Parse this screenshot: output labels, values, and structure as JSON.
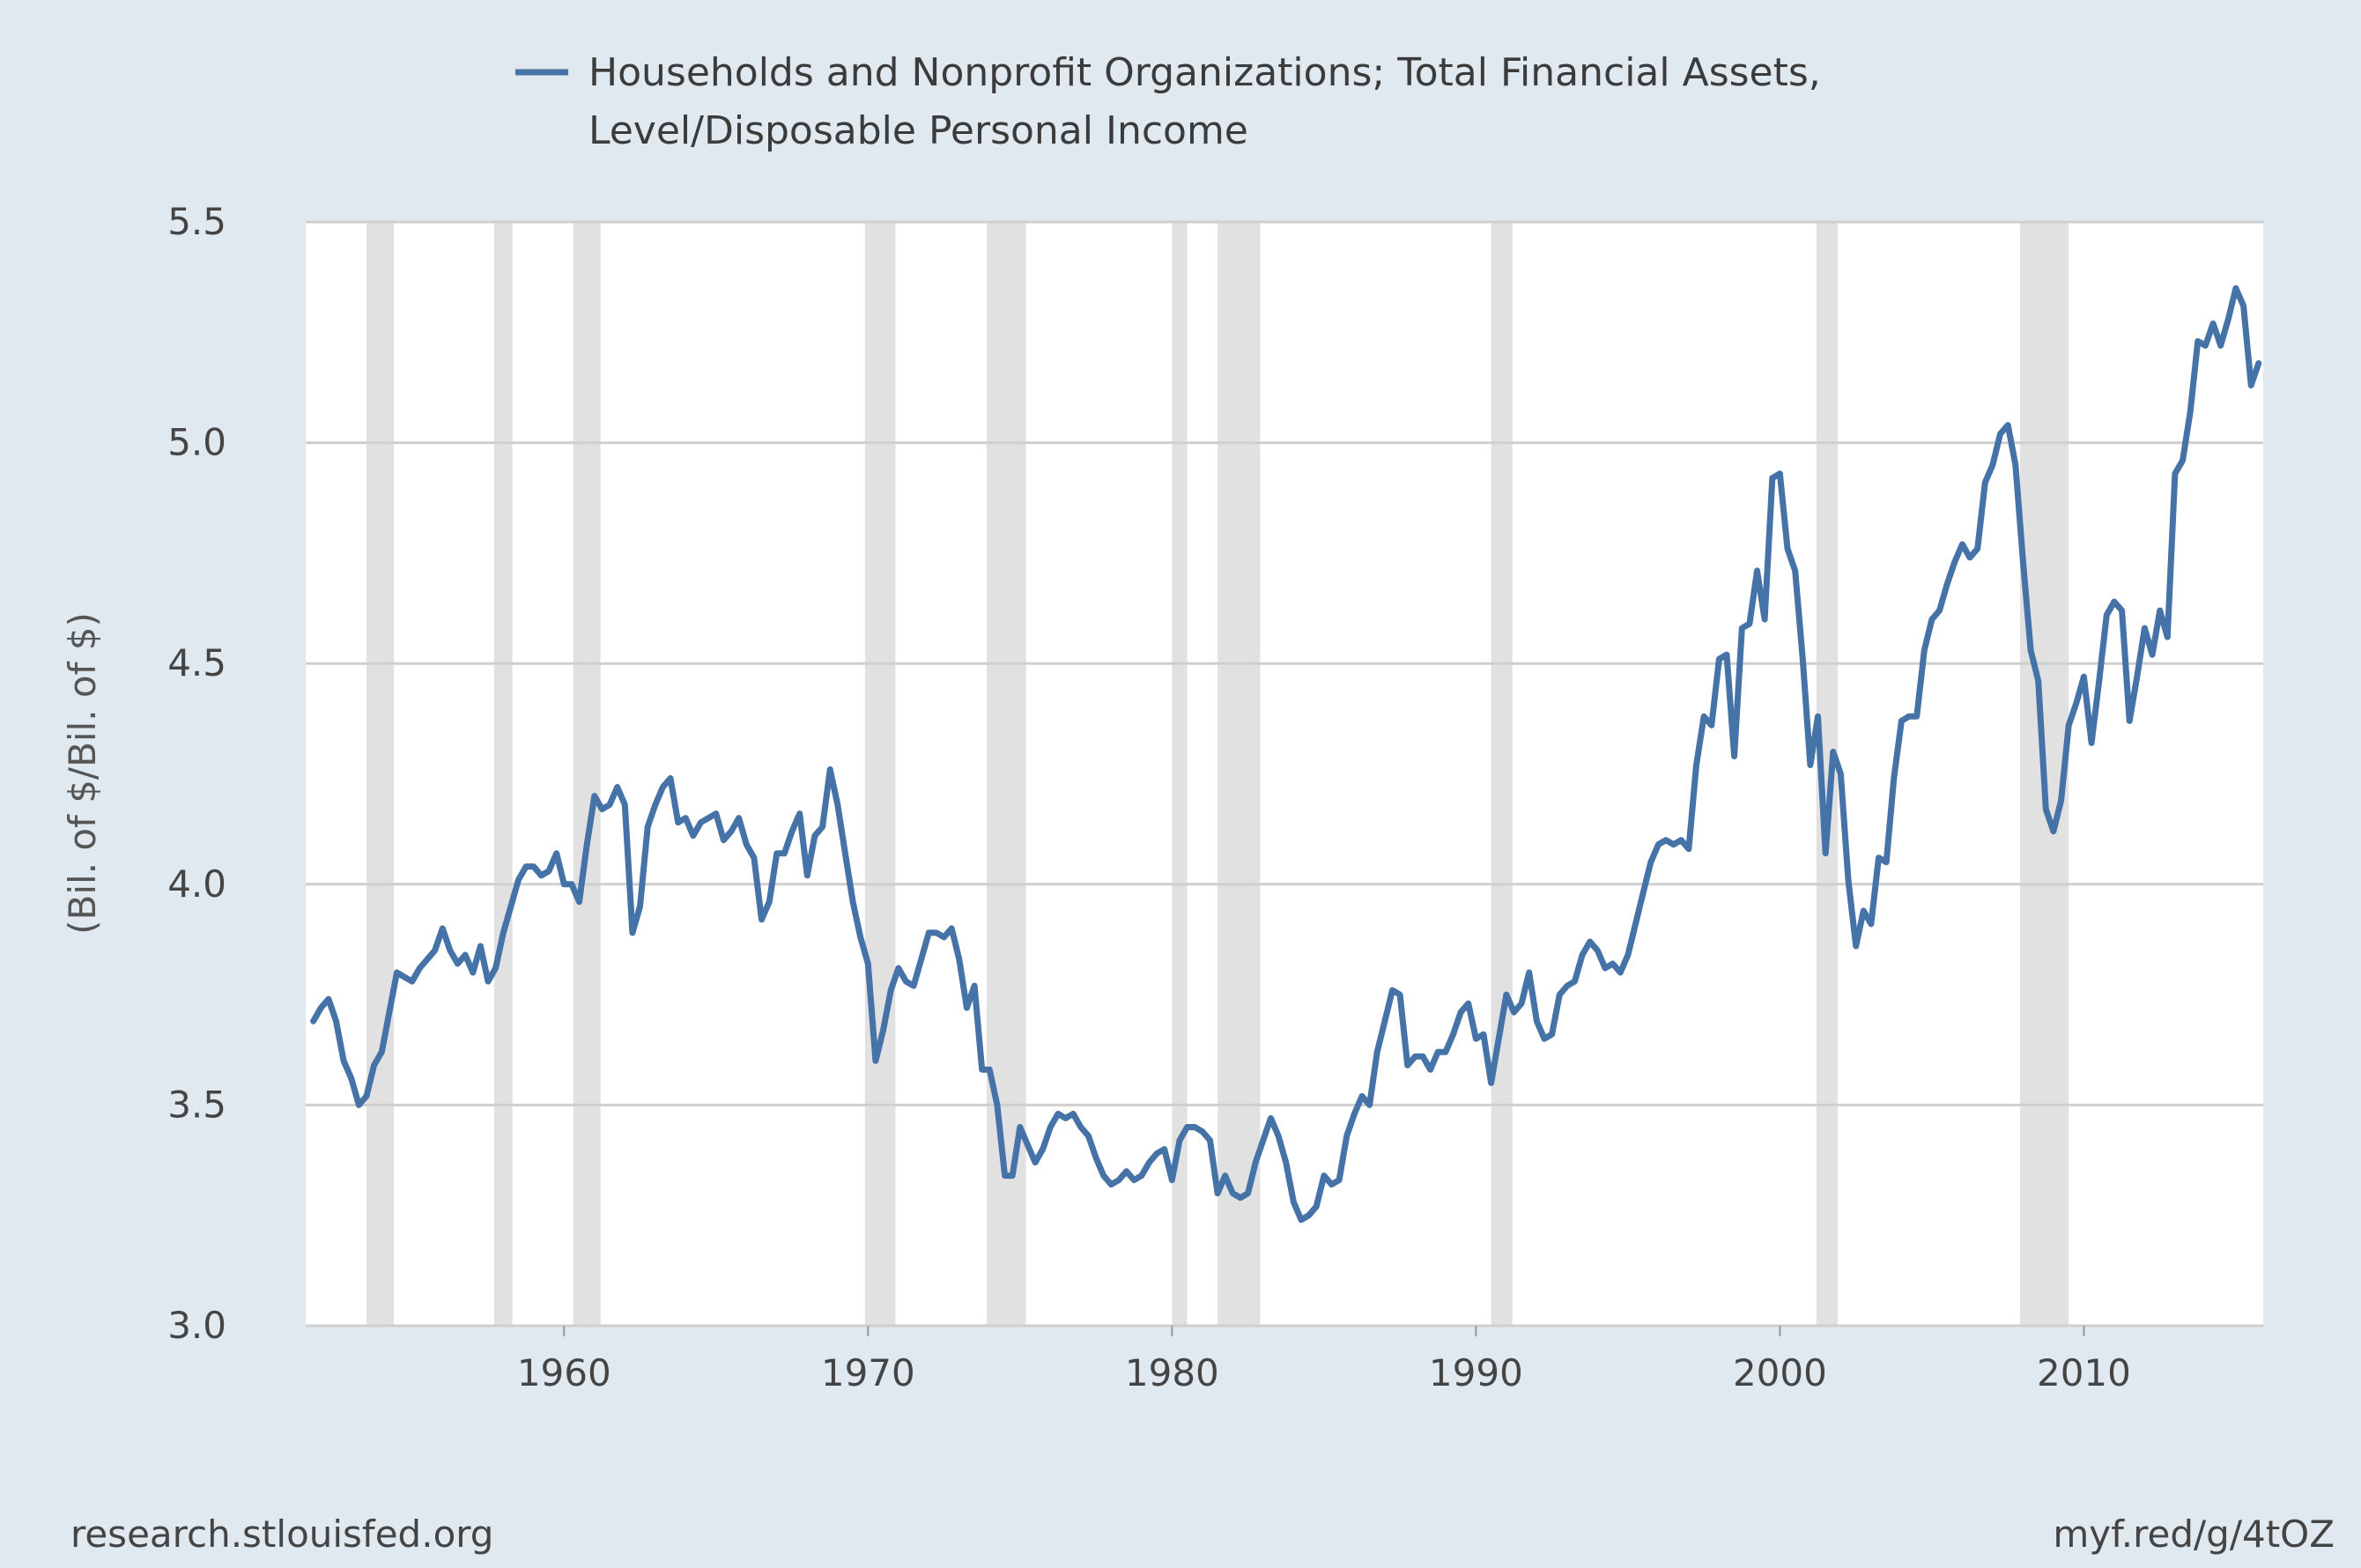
{
  "legend": {
    "line1": "Households and Nonprofit Organizations; Total Financial Assets,",
    "line2": "Level/Disposable Personal Income",
    "color": "#4572a7"
  },
  "footer": {
    "left": "research.stlouisfed.org",
    "right": "myf.red/g/4tOZ"
  },
  "chart_data": {
    "type": "line",
    "ylabel": "(Bil. of $/Bil. of $)",
    "xlim": [
      1951.5,
      2015.9
    ],
    "ylim": [
      3.0,
      5.5
    ],
    "x_ticks": [
      1960,
      1970,
      1980,
      1990,
      2000,
      2010
    ],
    "y_ticks": [
      3.0,
      3.5,
      4.0,
      4.5,
      5.0,
      5.5
    ],
    "y_tick_labels": [
      "3.0",
      "3.5",
      "4.0",
      "4.5",
      "5.0",
      "5.5"
    ],
    "grid": "horizontal",
    "legend_position": "top",
    "recession_color": "#e1e1e1",
    "recessions": [
      [
        1953.5,
        1954.4
      ],
      [
        1957.7,
        1958.3
      ],
      [
        1960.3,
        1961.2
      ],
      [
        1969.9,
        1970.9
      ],
      [
        1973.9,
        1975.2
      ],
      [
        1980.0,
        1980.5
      ],
      [
        1981.5,
        1982.9
      ],
      [
        1990.5,
        1991.2
      ],
      [
        2001.2,
        2001.9
      ],
      [
        2007.9,
        2009.5
      ]
    ],
    "series": [
      {
        "color": "#4572a7",
        "points": [
          [
            1951.75,
            3.69
          ],
          [
            1952.0,
            3.72
          ],
          [
            1952.25,
            3.74
          ],
          [
            1952.5,
            3.69
          ],
          [
            1952.75,
            3.6
          ],
          [
            1953.0,
            3.56
          ],
          [
            1953.25,
            3.5
          ],
          [
            1953.5,
            3.52
          ],
          [
            1953.75,
            3.59
          ],
          [
            1954.0,
            3.62
          ],
          [
            1954.25,
            3.71
          ],
          [
            1954.5,
            3.8
          ],
          [
            1954.75,
            3.79
          ],
          [
            1955.0,
            3.78
          ],
          [
            1955.25,
            3.81
          ],
          [
            1955.5,
            3.83
          ],
          [
            1955.75,
            3.85
          ],
          [
            1956.0,
            3.9
          ],
          [
            1956.25,
            3.85
          ],
          [
            1956.5,
            3.82
          ],
          [
            1956.75,
            3.84
          ],
          [
            1957.0,
            3.8
          ],
          [
            1957.25,
            3.86
          ],
          [
            1957.5,
            3.78
          ],
          [
            1957.75,
            3.81
          ],
          [
            1958.0,
            3.89
          ],
          [
            1958.25,
            3.95
          ],
          [
            1958.5,
            4.01
          ],
          [
            1958.75,
            4.04
          ],
          [
            1959.0,
            4.04
          ],
          [
            1959.25,
            4.02
          ],
          [
            1959.5,
            4.03
          ],
          [
            1959.75,
            4.07
          ],
          [
            1960.0,
            4.0
          ],
          [
            1960.25,
            4.0
          ],
          [
            1960.5,
            3.96
          ],
          [
            1960.75,
            4.09
          ],
          [
            1961.0,
            4.2
          ],
          [
            1961.25,
            4.17
          ],
          [
            1961.5,
            4.18
          ],
          [
            1961.75,
            4.22
          ],
          [
            1962.0,
            4.18
          ],
          [
            1962.25,
            3.89
          ],
          [
            1962.5,
            3.95
          ],
          [
            1962.75,
            4.13
          ],
          [
            1963.0,
            4.18
          ],
          [
            1963.25,
            4.22
          ],
          [
            1963.5,
            4.24
          ],
          [
            1963.75,
            4.14
          ],
          [
            1964.0,
            4.15
          ],
          [
            1964.25,
            4.11
          ],
          [
            1964.5,
            4.14
          ],
          [
            1964.75,
            4.15
          ],
          [
            1965.0,
            4.16
          ],
          [
            1965.25,
            4.1
          ],
          [
            1965.5,
            4.12
          ],
          [
            1965.75,
            4.15
          ],
          [
            1966.0,
            4.09
          ],
          [
            1966.25,
            4.06
          ],
          [
            1966.5,
            3.92
          ],
          [
            1966.75,
            3.96
          ],
          [
            1967.0,
            4.07
          ],
          [
            1967.25,
            4.07
          ],
          [
            1967.5,
            4.12
          ],
          [
            1967.75,
            4.16
          ],
          [
            1968.0,
            4.02
          ],
          [
            1968.25,
            4.11
          ],
          [
            1968.5,
            4.13
          ],
          [
            1968.75,
            4.26
          ],
          [
            1969.0,
            4.18
          ],
          [
            1969.25,
            4.07
          ],
          [
            1969.5,
            3.96
          ],
          [
            1969.75,
            3.88
          ],
          [
            1970.0,
            3.82
          ],
          [
            1970.25,
            3.6
          ],
          [
            1970.5,
            3.67
          ],
          [
            1970.75,
            3.76
          ],
          [
            1971.0,
            3.81
          ],
          [
            1971.25,
            3.78
          ],
          [
            1971.5,
            3.77
          ],
          [
            1971.75,
            3.83
          ],
          [
            1972.0,
            3.89
          ],
          [
            1972.25,
            3.89
          ],
          [
            1972.5,
            3.88
          ],
          [
            1972.75,
            3.9
          ],
          [
            1973.0,
            3.83
          ],
          [
            1973.25,
            3.72
          ],
          [
            1973.5,
            3.77
          ],
          [
            1973.75,
            3.58
          ],
          [
            1974.0,
            3.58
          ],
          [
            1974.25,
            3.5
          ],
          [
            1974.5,
            3.34
          ],
          [
            1974.75,
            3.34
          ],
          [
            1975.0,
            3.45
          ],
          [
            1975.25,
            3.41
          ],
          [
            1975.5,
            3.37
          ],
          [
            1975.75,
            3.4
          ],
          [
            1976.0,
            3.45
          ],
          [
            1976.25,
            3.48
          ],
          [
            1976.5,
            3.47
          ],
          [
            1976.75,
            3.48
          ],
          [
            1977.0,
            3.45
          ],
          [
            1977.25,
            3.43
          ],
          [
            1977.5,
            3.38
          ],
          [
            1977.75,
            3.34
          ],
          [
            1978.0,
            3.32
          ],
          [
            1978.25,
            3.33
          ],
          [
            1978.5,
            3.35
          ],
          [
            1978.75,
            3.33
          ],
          [
            1979.0,
            3.34
          ],
          [
            1979.25,
            3.37
          ],
          [
            1979.5,
            3.39
          ],
          [
            1979.75,
            3.4
          ],
          [
            1980.0,
            3.33
          ],
          [
            1980.25,
            3.42
          ],
          [
            1980.5,
            3.45
          ],
          [
            1980.75,
            3.45
          ],
          [
            1981.0,
            3.44
          ],
          [
            1981.25,
            3.42
          ],
          [
            1981.5,
            3.3
          ],
          [
            1981.75,
            3.34
          ],
          [
            1982.0,
            3.3
          ],
          [
            1982.25,
            3.29
          ],
          [
            1982.5,
            3.3
          ],
          [
            1982.75,
            3.37
          ],
          [
            1983.0,
            3.42
          ],
          [
            1983.25,
            3.47
          ],
          [
            1983.5,
            3.43
          ],
          [
            1983.75,
            3.37
          ],
          [
            1984.0,
            3.28
          ],
          [
            1984.25,
            3.24
          ],
          [
            1984.5,
            3.25
          ],
          [
            1984.75,
            3.27
          ],
          [
            1985.0,
            3.34
          ],
          [
            1985.25,
            3.32
          ],
          [
            1985.5,
            3.33
          ],
          [
            1985.75,
            3.43
          ],
          [
            1986.0,
            3.48
          ],
          [
            1986.25,
            3.52
          ],
          [
            1986.5,
            3.5
          ],
          [
            1986.75,
            3.62
          ],
          [
            1987.0,
            3.69
          ],
          [
            1987.25,
            3.76
          ],
          [
            1987.5,
            3.75
          ],
          [
            1987.75,
            3.59
          ],
          [
            1988.0,
            3.61
          ],
          [
            1988.25,
            3.61
          ],
          [
            1988.5,
            3.58
          ],
          [
            1988.75,
            3.62
          ],
          [
            1989.0,
            3.62
          ],
          [
            1989.25,
            3.66
          ],
          [
            1989.5,
            3.71
          ],
          [
            1989.75,
            3.73
          ],
          [
            1990.0,
            3.65
          ],
          [
            1990.25,
            3.66
          ],
          [
            1990.5,
            3.55
          ],
          [
            1990.75,
            3.65
          ],
          [
            1991.0,
            3.75
          ],
          [
            1991.25,
            3.71
          ],
          [
            1991.5,
            3.73
          ],
          [
            1991.75,
            3.8
          ],
          [
            1992.0,
            3.69
          ],
          [
            1992.25,
            3.65
          ],
          [
            1992.5,
            3.66
          ],
          [
            1992.75,
            3.75
          ],
          [
            1993.0,
            3.77
          ],
          [
            1993.25,
            3.78
          ],
          [
            1993.5,
            3.84
          ],
          [
            1993.75,
            3.87
          ],
          [
            1994.0,
            3.85
          ],
          [
            1994.25,
            3.81
          ],
          [
            1994.5,
            3.82
          ],
          [
            1994.75,
            3.8
          ],
          [
            1995.0,
            3.84
          ],
          [
            1995.25,
            3.91
          ],
          [
            1995.5,
            3.98
          ],
          [
            1995.75,
            4.05
          ],
          [
            1996.0,
            4.09
          ],
          [
            1996.25,
            4.1
          ],
          [
            1996.5,
            4.09
          ],
          [
            1996.75,
            4.1
          ],
          [
            1997.0,
            4.08
          ],
          [
            1997.25,
            4.27
          ],
          [
            1997.5,
            4.38
          ],
          [
            1997.75,
            4.36
          ],
          [
            1998.0,
            4.51
          ],
          [
            1998.25,
            4.52
          ],
          [
            1998.5,
            4.29
          ],
          [
            1998.75,
            4.58
          ],
          [
            1999.0,
            4.59
          ],
          [
            1999.25,
            4.71
          ],
          [
            1999.5,
            4.6
          ],
          [
            1999.75,
            4.92
          ],
          [
            2000.0,
            4.93
          ],
          [
            2000.25,
            4.76
          ],
          [
            2000.5,
            4.71
          ],
          [
            2000.75,
            4.51
          ],
          [
            2001.0,
            4.27
          ],
          [
            2001.25,
            4.38
          ],
          [
            2001.5,
            4.07
          ],
          [
            2001.75,
            4.3
          ],
          [
            2002.0,
            4.25
          ],
          [
            2002.25,
            4.01
          ],
          [
            2002.5,
            3.86
          ],
          [
            2002.75,
            3.94
          ],
          [
            2003.0,
            3.91
          ],
          [
            2003.25,
            4.06
          ],
          [
            2003.5,
            4.05
          ],
          [
            2003.75,
            4.24
          ],
          [
            2004.0,
            4.37
          ],
          [
            2004.25,
            4.38
          ],
          [
            2004.5,
            4.38
          ],
          [
            2004.75,
            4.53
          ],
          [
            2005.0,
            4.6
          ],
          [
            2005.25,
            4.62
          ],
          [
            2005.5,
            4.68
          ],
          [
            2005.75,
            4.73
          ],
          [
            2006.0,
            4.77
          ],
          [
            2006.25,
            4.74
          ],
          [
            2006.5,
            4.76
          ],
          [
            2006.75,
            4.91
          ],
          [
            2007.0,
            4.95
          ],
          [
            2007.25,
            5.02
          ],
          [
            2007.5,
            5.04
          ],
          [
            2007.75,
            4.95
          ],
          [
            2008.0,
            4.73
          ],
          [
            2008.25,
            4.53
          ],
          [
            2008.5,
            4.46
          ],
          [
            2008.75,
            4.17
          ],
          [
            2009.0,
            4.12
          ],
          [
            2009.25,
            4.19
          ],
          [
            2009.5,
            4.36
          ],
          [
            2009.75,
            4.41
          ],
          [
            2010.0,
            4.47
          ],
          [
            2010.25,
            4.32
          ],
          [
            2010.5,
            4.46
          ],
          [
            2010.75,
            4.61
          ],
          [
            2011.0,
            4.64
          ],
          [
            2011.25,
            4.62
          ],
          [
            2011.5,
            4.37
          ],
          [
            2011.75,
            4.47
          ],
          [
            2012.0,
            4.58
          ],
          [
            2012.25,
            4.52
          ],
          [
            2012.5,
            4.62
          ],
          [
            2012.75,
            4.56
          ],
          [
            2013.0,
            4.93
          ],
          [
            2013.25,
            4.96
          ],
          [
            2013.5,
            5.07
          ],
          [
            2013.75,
            5.23
          ],
          [
            2014.0,
            5.22
          ],
          [
            2014.25,
            5.27
          ],
          [
            2014.5,
            5.22
          ],
          [
            2014.75,
            5.28
          ],
          [
            2015.0,
            5.35
          ],
          [
            2015.25,
            5.31
          ],
          [
            2015.5,
            5.13
          ],
          [
            2015.75,
            5.18
          ]
        ]
      }
    ]
  }
}
